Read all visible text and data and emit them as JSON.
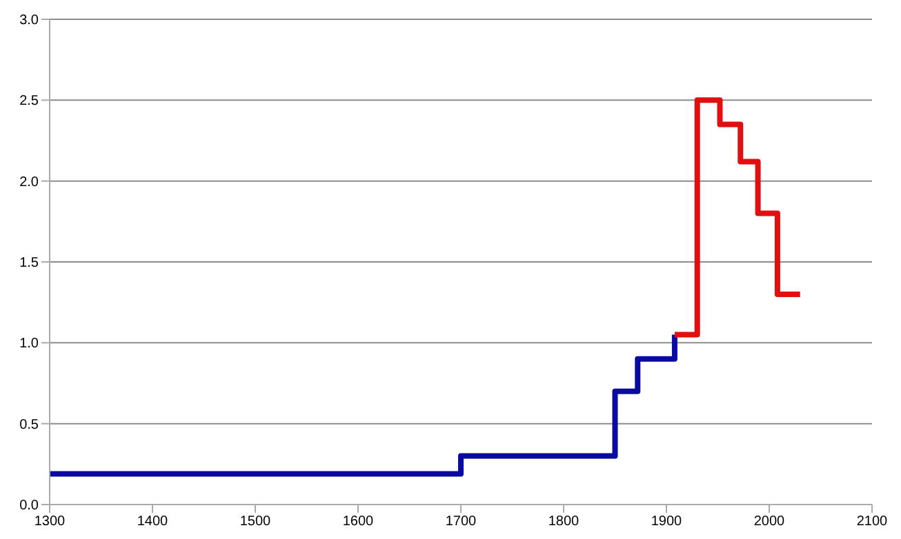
{
  "chart_data": {
    "type": "step",
    "xlim": [
      1300,
      2100
    ],
    "xticks": [
      1300,
      1400,
      1500,
      1600,
      1700,
      1800,
      1900,
      2000,
      2100
    ],
    "ylim": [
      0,
      3
    ],
    "yticks": [
      {
        "value": 0,
        "label": "0.0"
      },
      {
        "value": 0.5,
        "label": "0.5"
      },
      {
        "value": 1,
        "label": "1.0"
      },
      {
        "value": 1.5,
        "label": "1.5"
      },
      {
        "value": 2,
        "label": "2.0"
      },
      {
        "value": 2.5,
        "label": "2.5"
      },
      {
        "value": 3,
        "label": "3.0"
      }
    ],
    "grid": "y",
    "marker": "none",
    "line_style": "solid",
    "series": [
      {
        "color": "#0a0aa0",
        "x": [
          1300,
          1700,
          1850,
          1872,
          1908
        ],
        "values": [
          0.19,
          0.3,
          0.7,
          0.9,
          1.05
        ]
      },
      {
        "color": "#e01010",
        "x": [
          1908,
          1930,
          1952,
          1972,
          1989,
          2008,
          2030
        ],
        "values": [
          1.05,
          2.5,
          2.35,
          2.12,
          1.8,
          1.3,
          1.3
        ]
      }
    ]
  }
}
